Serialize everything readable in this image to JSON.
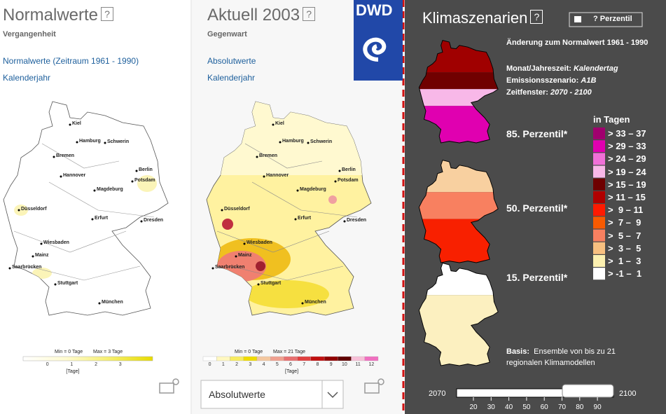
{
  "normal": {
    "title": "Normalwerte",
    "help": "?",
    "subtitle": "Vergangenheit",
    "links": [
      "Normalwerte (Zeitraum 1961 - 1990)",
      "Kalenderjahr"
    ],
    "legend": {
      "min": "Min = 0 Tage",
      "max": "Max = 3 Tage",
      "ticks": [
        "0",
        "1",
        "2",
        "3"
      ],
      "unit": "[Tage]"
    }
  },
  "aktuell": {
    "title": "Aktuell 2003",
    "help": "?",
    "subtitle": "Gegenwart",
    "links": [
      "Absolutwerte",
      "Kalenderjahr"
    ],
    "legend": {
      "min": "Min = 0 Tage",
      "max": "Max = 21 Tage",
      "ticks": [
        "0",
        "1",
        "2",
        "3",
        "4",
        "5",
        "6",
        "7",
        "8",
        "9",
        "10",
        "11",
        "12"
      ],
      "unit": "[Tage]"
    },
    "dropdown": "Absolutwerte"
  },
  "cities": [
    "Kiel",
    "Hamburg",
    "Schwerin",
    "Bremen",
    "Berlin",
    "Hannover",
    "Potsdam",
    "Magdeburg",
    "Düsseldorf",
    "Erfurt",
    "Dresden",
    "Wiesbaden",
    "Mainz",
    "Saarbrücken",
    "Stuttgart",
    "München"
  ],
  "logo": "DWD",
  "klima": {
    "title": "Klimaszenarien",
    "help": "?",
    "button": "? Perzentil",
    "heading": "Änderung zum Normalwert 1961 - 1990",
    "info": [
      {
        "label": "Monat/Jahreszeit:",
        "value": "Kalendertag"
      },
      {
        "label": "Emissionsszenario:",
        "value": "A1B"
      },
      {
        "label": "Zeitfenster:",
        "value": "2070 - 2100"
      }
    ],
    "percentiles": [
      "85. Perzentil*",
      "50. Perzentil*",
      "15. Perzentil*"
    ],
    "legend_title": "in Tagen",
    "legend": [
      {
        "label": "> 33 – 37",
        "color": "#a0006e"
      },
      {
        "label": "> 29 – 33",
        "color": "#e000b0"
      },
      {
        "label": "> 24 – 29",
        "color": "#f070d8"
      },
      {
        "label": "> 19 – 24",
        "color": "#f8b8e8"
      },
      {
        "label": "> 15 – 19",
        "color": "#6e0000"
      },
      {
        "label": "> 11 – 15",
        "color": "#b00000"
      },
      {
        "label": ">  9 – 11",
        "color": "#ff1a00"
      },
      {
        "label": ">  7 –  9",
        "color": "#f85a00"
      },
      {
        "label": ">  5 –  7",
        "color": "#f88060"
      },
      {
        "label": ">  3 –  5",
        "color": "#f8c080"
      },
      {
        "label": ">  1 –  3",
        "color": "#fcf0b0"
      },
      {
        "label": "> -1 –  1",
        "color": "#ffffff"
      }
    ],
    "basis_label": "Basis:",
    "basis_text": [
      "Ensemble von bis zu 21",
      "regionalen Klimamodellen"
    ],
    "slider": {
      "start": "2070",
      "end": "2100",
      "ticks": [
        "20",
        "30",
        "40",
        "50",
        "60",
        "70",
        "80",
        "90"
      ]
    }
  }
}
